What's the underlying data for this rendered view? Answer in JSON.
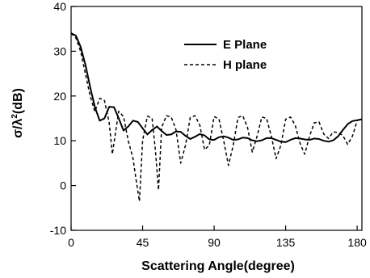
{
  "chart_data": {
    "type": "line",
    "xlabel": "Scattering Angle(degree)",
    "ylabel_main": "σ/λ",
    "ylabel_sup": "2",
    "ylabel_unit": "(dB)",
    "xlim": [
      0,
      183
    ],
    "ylim": [
      -10,
      40
    ],
    "x_ticks": [
      0,
      45,
      90,
      135,
      180
    ],
    "y_ticks": [
      -10,
      0,
      10,
      20,
      30,
      40
    ],
    "grid": false,
    "legend_position": "top-right",
    "series": [
      {
        "name": "E Plane",
        "style": "solid",
        "color": "#000000",
        "x": [
          0,
          3,
          6,
          9,
          12,
          15,
          18,
          21,
          24,
          27,
          30,
          33,
          36,
          39,
          42,
          45,
          48,
          51,
          54,
          57,
          60,
          63,
          66,
          69,
          72,
          75,
          78,
          81,
          84,
          87,
          90,
          93,
          96,
          99,
          102,
          105,
          108,
          111,
          114,
          117,
          120,
          123,
          126,
          129,
          132,
          135,
          138,
          141,
          144,
          147,
          150,
          153,
          156,
          159,
          162,
          165,
          168,
          171,
          174,
          177,
          180,
          183
        ],
        "y": [
          34,
          33.5,
          31,
          27,
          22,
          17.5,
          14.5,
          15,
          17.6,
          17.5,
          15,
          12.3,
          13.2,
          14.5,
          14.2,
          12.8,
          11.4,
          12.4,
          13.2,
          12.2,
          11.3,
          11.4,
          12.1,
          12.0,
          11.1,
          10.4,
          10.9,
          11.5,
          11.2,
          10.3,
          10.2,
          10.8,
          11.0,
          10.7,
          10.2,
          10.3,
          10.7,
          10.6,
          10.1,
          9.9,
          10.1,
          10.6,
          10.6,
          10.2,
          9.8,
          9.7,
          10.2,
          10.6,
          10.5,
          10.3,
          10.2,
          10.5,
          10.4,
          10.0,
          9.8,
          10.1,
          11.0,
          12.4,
          13.7,
          14.4,
          14.6,
          14.8
        ]
      },
      {
        "name": "H plane",
        "style": "dashed",
        "color": "#000000",
        "x": [
          0,
          3,
          6,
          9,
          12,
          15,
          18,
          21,
          24,
          26,
          28,
          30,
          33,
          36,
          39,
          41,
          43,
          45,
          48,
          51,
          53,
          55,
          57,
          60,
          63,
          66,
          69,
          72,
          75,
          78,
          81,
          84,
          87,
          90,
          93,
          96,
          99,
          102,
          105,
          108,
          111,
          114,
          117,
          120,
          123,
          126,
          129,
          132,
          135,
          138,
          141,
          144,
          147,
          150,
          153,
          156,
          159,
          162,
          165,
          168,
          171,
          174,
          177,
          180,
          183
        ],
        "y": [
          34,
          33,
          30,
          25,
          20,
          16.5,
          19.5,
          19.0,
          14,
          7,
          12,
          16.6,
          15.4,
          10,
          6,
          1,
          -3.5,
          10,
          15.5,
          15.0,
          8,
          -1,
          13,
          15.6,
          15.3,
          12.5,
          5,
          9,
          15.2,
          15.6,
          13.5,
          8,
          9,
          15.4,
          14.9,
          10,
          4.5,
          9,
          15.2,
          15.6,
          13,
          7.5,
          11,
          15.3,
          15.0,
          11,
          6,
          9,
          14.8,
          15.3,
          13.5,
          9.5,
          7,
          11,
          14.0,
          14.2,
          11.5,
          10.5,
          12.0,
          11.8,
          11.2,
          9.2,
          11,
          14.5,
          14.9
        ]
      }
    ]
  }
}
